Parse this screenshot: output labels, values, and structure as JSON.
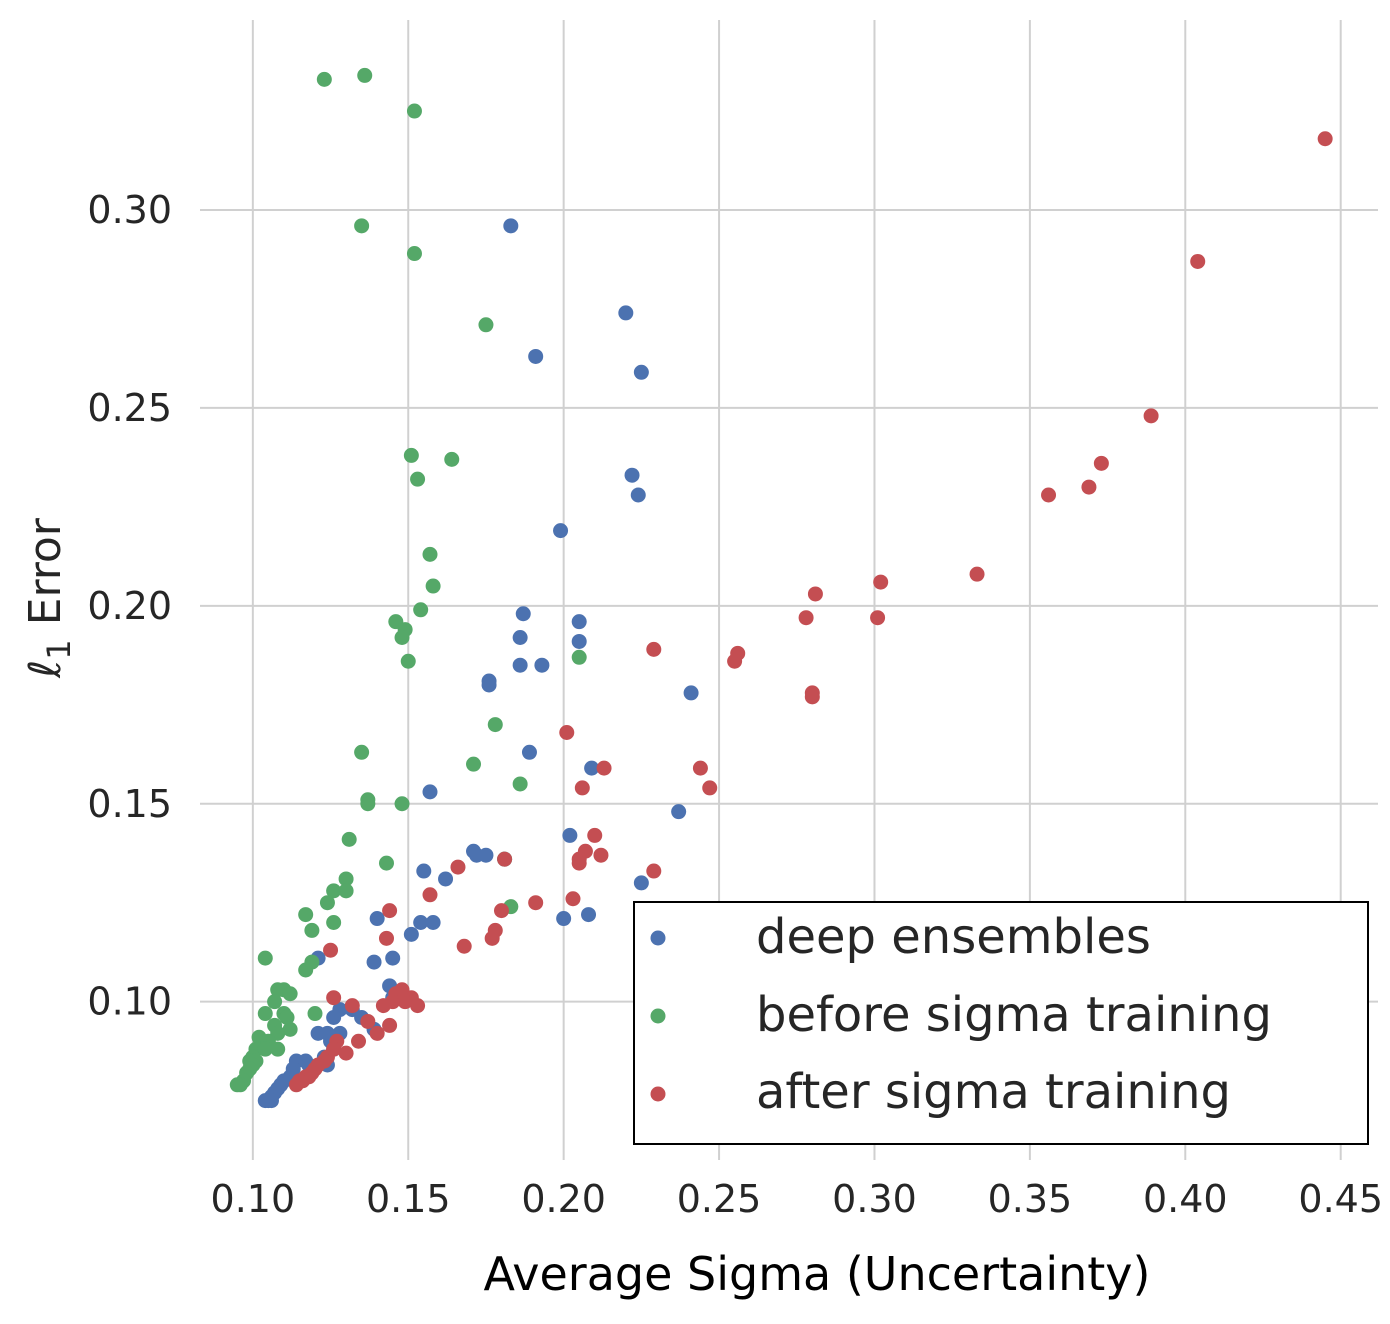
{
  "chart_data": {
    "type": "scatter",
    "xlabel": "Average Sigma (Uncertainty)",
    "ylabel": "ℓ1 Error",
    "ylabel_main": "ℓ",
    "ylabel_sub": "1",
    "ylabel_rest": " Error",
    "xlim": [
      0.083,
      0.462
    ],
    "ylim": [
      0.06,
      0.348
    ],
    "xticks": [
      0.1,
      0.15,
      0.2,
      0.25,
      0.3,
      0.35,
      0.4,
      0.45
    ],
    "xtick_labels": [
      "0.10",
      "0.15",
      "0.20",
      "0.25",
      "0.30",
      "0.35",
      "0.40",
      "0.45"
    ],
    "yticks": [
      0.1,
      0.15,
      0.2,
      0.25,
      0.3
    ],
    "ytick_labels": [
      "0.10",
      "0.15",
      "0.20",
      "0.25",
      "0.30"
    ],
    "grid": true,
    "legend_position": "bottom-right",
    "series": [
      {
        "name": "deep ensembles",
        "color": "#4c72b0",
        "points": [
          [
            0.183,
            0.296
          ],
          [
            0.22,
            0.274
          ],
          [
            0.191,
            0.263
          ],
          [
            0.225,
            0.259
          ],
          [
            0.222,
            0.233
          ],
          [
            0.224,
            0.228
          ],
          [
            0.199,
            0.219
          ],
          [
            0.187,
            0.198
          ],
          [
            0.205,
            0.196
          ],
          [
            0.205,
            0.191
          ],
          [
            0.186,
            0.192
          ],
          [
            0.186,
            0.185
          ],
          [
            0.193,
            0.185
          ],
          [
            0.176,
            0.181
          ],
          [
            0.176,
            0.18
          ],
          [
            0.241,
            0.178
          ],
          [
            0.189,
            0.163
          ],
          [
            0.209,
            0.159
          ],
          [
            0.157,
            0.153
          ],
          [
            0.237,
            0.148
          ],
          [
            0.202,
            0.142
          ],
          [
            0.171,
            0.138
          ],
          [
            0.175,
            0.137
          ],
          [
            0.172,
            0.137
          ],
          [
            0.181,
            0.136
          ],
          [
            0.155,
            0.133
          ],
          [
            0.162,
            0.131
          ],
          [
            0.225,
            0.13
          ],
          [
            0.208,
            0.122
          ],
          [
            0.2,
            0.121
          ],
          [
            0.14,
            0.121
          ],
          [
            0.154,
            0.12
          ],
          [
            0.158,
            0.12
          ],
          [
            0.151,
            0.117
          ],
          [
            0.121,
            0.111
          ],
          [
            0.145,
            0.111
          ],
          [
            0.139,
            0.11
          ],
          [
            0.144,
            0.104
          ],
          [
            0.145,
            0.101
          ],
          [
            0.128,
            0.098
          ],
          [
            0.132,
            0.098
          ],
          [
            0.126,
            0.096
          ],
          [
            0.135,
            0.096
          ],
          [
            0.121,
            0.092
          ],
          [
            0.124,
            0.092
          ],
          [
            0.128,
            0.092
          ],
          [
            0.139,
            0.093
          ],
          [
            0.125,
            0.09
          ],
          [
            0.126,
            0.088
          ],
          [
            0.123,
            0.086
          ],
          [
            0.114,
            0.085
          ],
          [
            0.117,
            0.085
          ],
          [
            0.118,
            0.084
          ],
          [
            0.124,
            0.084
          ],
          [
            0.113,
            0.083
          ],
          [
            0.112,
            0.081
          ],
          [
            0.11,
            0.08
          ],
          [
            0.109,
            0.079
          ],
          [
            0.108,
            0.078
          ],
          [
            0.107,
            0.077
          ],
          [
            0.106,
            0.076
          ],
          [
            0.105,
            0.075
          ],
          [
            0.104,
            0.075
          ],
          [
            0.106,
            0.075
          ]
        ]
      },
      {
        "name": "before sigma training",
        "color": "#55a868",
        "points": [
          [
            0.123,
            0.333
          ],
          [
            0.136,
            0.334
          ],
          [
            0.152,
            0.325
          ],
          [
            0.135,
            0.296
          ],
          [
            0.152,
            0.289
          ],
          [
            0.175,
            0.271
          ],
          [
            0.151,
            0.238
          ],
          [
            0.164,
            0.237
          ],
          [
            0.153,
            0.232
          ],
          [
            0.157,
            0.213
          ],
          [
            0.158,
            0.205
          ],
          [
            0.154,
            0.199
          ],
          [
            0.146,
            0.196
          ],
          [
            0.149,
            0.194
          ],
          [
            0.148,
            0.192
          ],
          [
            0.15,
            0.186
          ],
          [
            0.205,
            0.187
          ],
          [
            0.178,
            0.17
          ],
          [
            0.135,
            0.163
          ],
          [
            0.171,
            0.16
          ],
          [
            0.186,
            0.155
          ],
          [
            0.137,
            0.151
          ],
          [
            0.137,
            0.15
          ],
          [
            0.148,
            0.15
          ],
          [
            0.131,
            0.141
          ],
          [
            0.143,
            0.135
          ],
          [
            0.181,
            0.136
          ],
          [
            0.13,
            0.131
          ],
          [
            0.126,
            0.128
          ],
          [
            0.13,
            0.128
          ],
          [
            0.124,
            0.125
          ],
          [
            0.183,
            0.124
          ],
          [
            0.117,
            0.122
          ],
          [
            0.126,
            0.12
          ],
          [
            0.119,
            0.118
          ],
          [
            0.104,
            0.111
          ],
          [
            0.119,
            0.11
          ],
          [
            0.117,
            0.108
          ],
          [
            0.11,
            0.103
          ],
          [
            0.108,
            0.103
          ],
          [
            0.112,
            0.102
          ],
          [
            0.107,
            0.1
          ],
          [
            0.104,
            0.097
          ],
          [
            0.11,
            0.097
          ],
          [
            0.12,
            0.097
          ],
          [
            0.111,
            0.096
          ],
          [
            0.107,
            0.094
          ],
          [
            0.112,
            0.093
          ],
          [
            0.102,
            0.091
          ],
          [
            0.108,
            0.092
          ],
          [
            0.105,
            0.09
          ],
          [
            0.101,
            0.088
          ],
          [
            0.104,
            0.088
          ],
          [
            0.108,
            0.088
          ],
          [
            0.1,
            0.086
          ],
          [
            0.099,
            0.085
          ],
          [
            0.101,
            0.085
          ],
          [
            0.1,
            0.084
          ],
          [
            0.099,
            0.083
          ],
          [
            0.098,
            0.082
          ],
          [
            0.097,
            0.08
          ],
          [
            0.096,
            0.079
          ],
          [
            0.095,
            0.079
          ]
        ]
      },
      {
        "name": "after sigma training",
        "color": "#c44e52",
        "points": [
          [
            0.445,
            0.318
          ],
          [
            0.404,
            0.287
          ],
          [
            0.389,
            0.248
          ],
          [
            0.373,
            0.236
          ],
          [
            0.369,
            0.23
          ],
          [
            0.356,
            0.228
          ],
          [
            0.333,
            0.208
          ],
          [
            0.302,
            0.206
          ],
          [
            0.281,
            0.203
          ],
          [
            0.278,
            0.197
          ],
          [
            0.301,
            0.197
          ],
          [
            0.229,
            0.189
          ],
          [
            0.256,
            0.188
          ],
          [
            0.255,
            0.186
          ],
          [
            0.28,
            0.178
          ],
          [
            0.28,
            0.177
          ],
          [
            0.201,
            0.168
          ],
          [
            0.244,
            0.159
          ],
          [
            0.213,
            0.159
          ],
          [
            0.247,
            0.154
          ],
          [
            0.206,
            0.154
          ],
          [
            0.21,
            0.142
          ],
          [
            0.207,
            0.138
          ],
          [
            0.212,
            0.137
          ],
          [
            0.205,
            0.136
          ],
          [
            0.205,
            0.135
          ],
          [
            0.181,
            0.136
          ],
          [
            0.166,
            0.134
          ],
          [
            0.229,
            0.133
          ],
          [
            0.157,
            0.127
          ],
          [
            0.203,
            0.126
          ],
          [
            0.191,
            0.125
          ],
          [
            0.18,
            0.123
          ],
          [
            0.144,
            0.123
          ],
          [
            0.178,
            0.118
          ],
          [
            0.177,
            0.116
          ],
          [
            0.143,
            0.116
          ],
          [
            0.168,
            0.114
          ],
          [
            0.125,
            0.113
          ],
          [
            0.148,
            0.103
          ],
          [
            0.146,
            0.102
          ],
          [
            0.151,
            0.101
          ],
          [
            0.145,
            0.1
          ],
          [
            0.149,
            0.1
          ],
          [
            0.153,
            0.099
          ],
          [
            0.126,
            0.101
          ],
          [
            0.132,
            0.099
          ],
          [
            0.142,
            0.099
          ],
          [
            0.137,
            0.095
          ],
          [
            0.144,
            0.094
          ],
          [
            0.14,
            0.092
          ],
          [
            0.134,
            0.09
          ],
          [
            0.127,
            0.09
          ],
          [
            0.126,
            0.088
          ],
          [
            0.13,
            0.087
          ],
          [
            0.124,
            0.086
          ],
          [
            0.123,
            0.085
          ],
          [
            0.121,
            0.084
          ],
          [
            0.12,
            0.083
          ],
          [
            0.119,
            0.082
          ],
          [
            0.118,
            0.081
          ],
          [
            0.117,
            0.081
          ],
          [
            0.116,
            0.08
          ],
          [
            0.115,
            0.08
          ],
          [
            0.114,
            0.079
          ]
        ]
      }
    ]
  }
}
